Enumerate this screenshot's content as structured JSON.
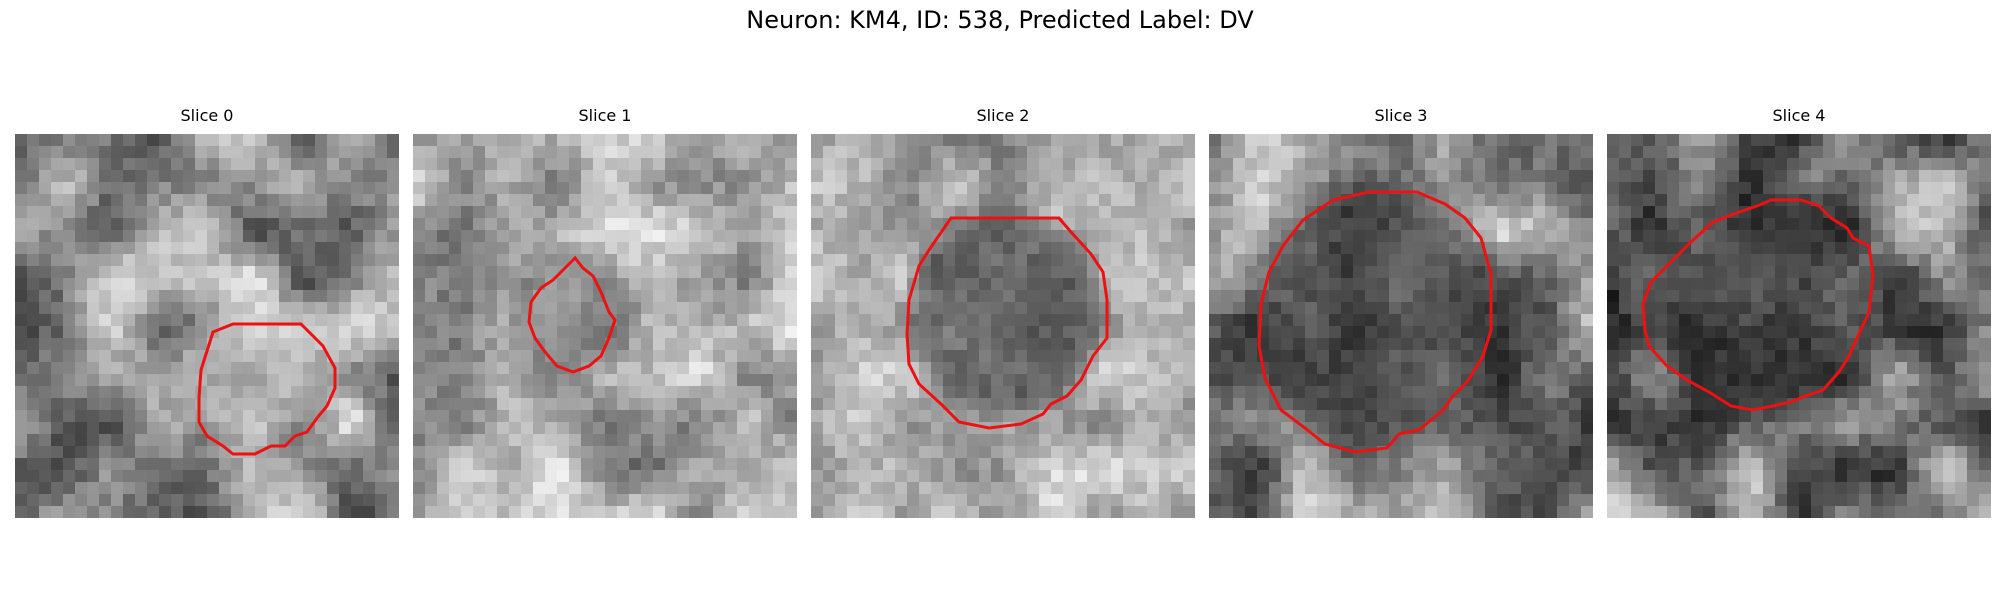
{
  "figure": {
    "title": "Neuron: KM4, ID: 538, Predicted Label: DV"
  },
  "panels": [
    {
      "title": "Slice 0"
    },
    {
      "title": "Slice 1"
    },
    {
      "title": "Slice 2"
    },
    {
      "title": "Slice 3"
    },
    {
      "title": "Slice 4"
    }
  ],
  "colors": {
    "contour": "#ee1111",
    "background": "#ffffff",
    "colormap": "grayscale"
  }
}
